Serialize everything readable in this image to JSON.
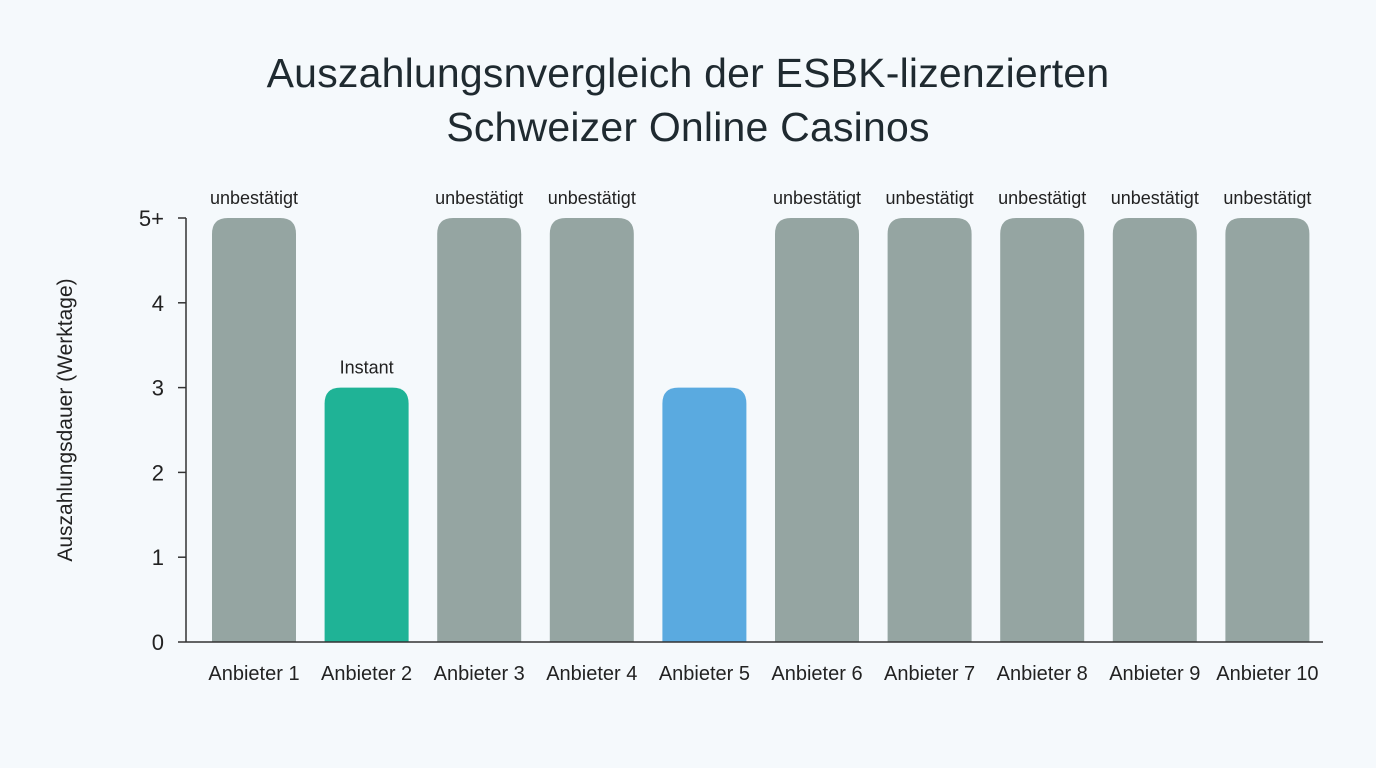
{
  "chart_data": {
    "type": "bar",
    "title_lines": [
      "Auszahlungsnvergleich der ESBK-lizenzierten",
      "Schweizer Online Casinos"
    ],
    "xlabel": "",
    "ylabel": "Auszahlungsdauer (Werktage)",
    "ylim": [
      0,
      5
    ],
    "yticks": [
      {
        "value": 0,
        "label": "0"
      },
      {
        "value": 1,
        "label": "1"
      },
      {
        "value": 2,
        "label": "2"
      },
      {
        "value": 3,
        "label": "3"
      },
      {
        "value": 4,
        "label": "4"
      },
      {
        "value": 5,
        "label": "5+"
      }
    ],
    "grid": false,
    "categories": [
      "Anbieter 1",
      "Anbieter 2",
      "Anbieter 3",
      "Anbieter 4",
      "Anbieter 5",
      "Anbieter 6",
      "Anbieter 7",
      "Anbieter 8",
      "Anbieter 9",
      "Anbieter 10"
    ],
    "values": [
      5,
      3,
      5,
      5,
      3,
      5,
      5,
      5,
      5,
      5
    ],
    "data_labels": [
      "unbestätigt",
      "Instant",
      "unbestätigt",
      "unbestätigt",
      "",
      "unbestätigt",
      "unbestätigt",
      "unbestätigt",
      "unbestätigt",
      "unbestätigt"
    ],
    "colors": [
      "#95a5a2",
      "#1fb396",
      "#95a5a2",
      "#95a5a2",
      "#5aaae0",
      "#95a5a2",
      "#95a5a2",
      "#95a5a2",
      "#95a5a2",
      "#95a5a2"
    ],
    "axis_color": "#333333"
  }
}
